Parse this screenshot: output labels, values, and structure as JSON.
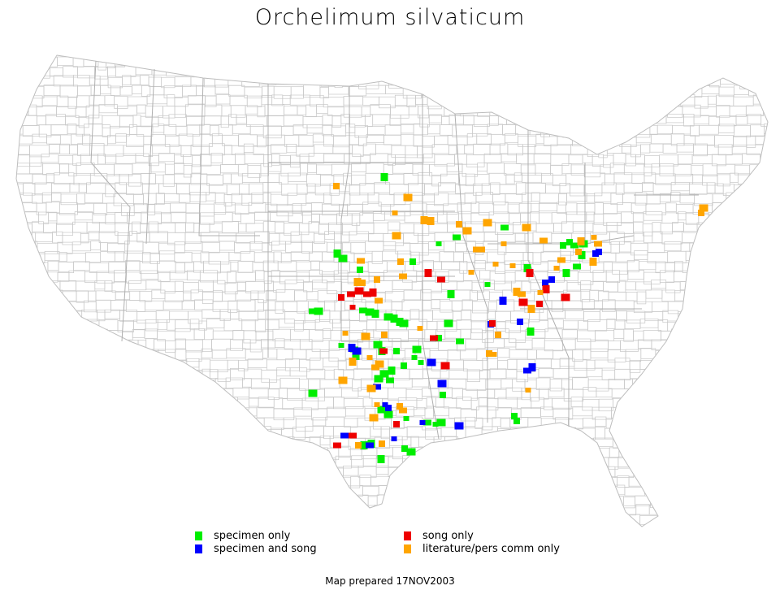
{
  "title": "Orchelimum silvaticum",
  "map": {
    "region": "Contiguous United States (county outlines)",
    "county_line_color": "#bdbdbd"
  },
  "legend": {
    "items": [
      {
        "key": "specimen_only",
        "label": "specimen only",
        "color": "#00ee00"
      },
      {
        "key": "specimen_and_song",
        "label": "specimen and song",
        "color": "#0000ff"
      },
      {
        "key": "song_only",
        "label": "song only",
        "color": "#ee0000"
      },
      {
        "key": "literature_only",
        "label": "literature/pers comm only",
        "color": "#ffa500"
      }
    ]
  },
  "footer": "Map prepared 17NOV2003"
}
